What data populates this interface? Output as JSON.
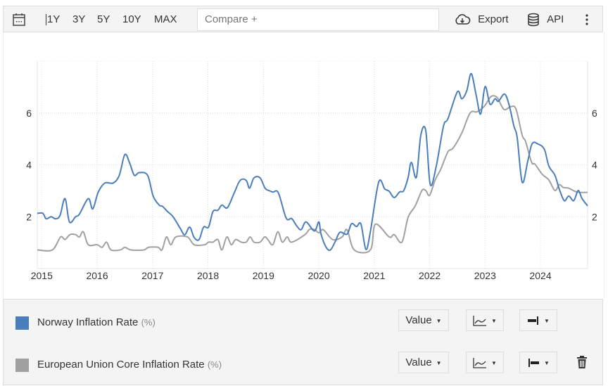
{
  "toolbar": {
    "ranges": [
      "1Y",
      "3Y",
      "5Y",
      "10Y",
      "MAX"
    ],
    "compare_placeholder": "Compare +",
    "export_label": "Export",
    "api_label": "API"
  },
  "legend": {
    "items": [
      {
        "name": "Norway Inflation Rate",
        "unit": "(%)",
        "color": "#4a7ebb",
        "value_label": "Value"
      },
      {
        "name": "European Union Core Inflation Rate",
        "unit": "(%)",
        "color": "#a0a0a0",
        "value_label": "Value"
      }
    ]
  },
  "chart_data": {
    "type": "line",
    "title": "",
    "xlabel": "",
    "ylabel": "",
    "xlim": [
      2014.92,
      2024.85
    ],
    "ylim": [
      0,
      8
    ],
    "x_ticks": [
      "2015",
      "2016",
      "2017",
      "2018",
      "2019",
      "2020",
      "2021",
      "2022",
      "2023",
      "2024"
    ],
    "y_ticks": [
      "2",
      "4",
      "6"
    ],
    "grid": true,
    "legend_placement": "bottom",
    "series": [
      {
        "name": "Norway Inflation Rate",
        "color": "#4a7ebb",
        "points": [
          [
            2014.92,
            2.13
          ],
          [
            2015.02,
            2.13
          ],
          [
            2015.08,
            1.92
          ],
          [
            2015.17,
            2.0
          ],
          [
            2015.25,
            1.92
          ],
          [
            2015.33,
            2.05
          ],
          [
            2015.42,
            2.7
          ],
          [
            2015.5,
            1.8
          ],
          [
            2015.61,
            2.0
          ],
          [
            2015.68,
            2.1
          ],
          [
            2015.84,
            2.7
          ],
          [
            2015.92,
            2.3
          ],
          [
            2016.02,
            2.95
          ],
          [
            2016.14,
            3.3
          ],
          [
            2016.29,
            3.3
          ],
          [
            2016.4,
            3.6
          ],
          [
            2016.5,
            4.4
          ],
          [
            2016.59,
            4.05
          ],
          [
            2016.67,
            3.6
          ],
          [
            2016.76,
            3.7
          ],
          [
            2016.91,
            3.6
          ],
          [
            2017.01,
            2.8
          ],
          [
            2017.12,
            2.45
          ],
          [
            2017.18,
            2.4
          ],
          [
            2017.27,
            2.2
          ],
          [
            2017.37,
            2.0
          ],
          [
            2017.5,
            1.55
          ],
          [
            2017.58,
            1.3
          ],
          [
            2017.67,
            1.6
          ],
          [
            2017.75,
            1.2
          ],
          [
            2017.84,
            1.12
          ],
          [
            2017.92,
            1.6
          ],
          [
            2018.01,
            1.6
          ],
          [
            2018.09,
            2.2
          ],
          [
            2018.18,
            2.25
          ],
          [
            2018.25,
            2.45
          ],
          [
            2018.35,
            2.35
          ],
          [
            2018.47,
            2.9
          ],
          [
            2018.58,
            3.4
          ],
          [
            2018.69,
            3.4
          ],
          [
            2018.75,
            3.1
          ],
          [
            2018.83,
            3.5
          ],
          [
            2018.94,
            3.5
          ],
          [
            2019.03,
            3.1
          ],
          [
            2019.11,
            3.0
          ],
          [
            2019.17,
            2.95
          ],
          [
            2019.27,
            2.92
          ],
          [
            2019.41,
            1.95
          ],
          [
            2019.51,
            1.93
          ],
          [
            2019.6,
            1.65
          ],
          [
            2019.68,
            1.5
          ],
          [
            2019.77,
            1.8
          ],
          [
            2019.92,
            1.45
          ],
          [
            2020.0,
            1.8
          ],
          [
            2020.04,
            1.33
          ],
          [
            2020.13,
            0.83
          ],
          [
            2020.21,
            0.72
          ],
          [
            2020.3,
            1.06
          ],
          [
            2020.38,
            1.4
          ],
          [
            2020.51,
            1.33
          ],
          [
            2020.59,
            1.73
          ],
          [
            2020.68,
            1.62
          ],
          [
            2020.76,
            1.72
          ],
          [
            2020.85,
            0.74
          ],
          [
            2020.93,
            1.42
          ],
          [
            2021.08,
            3.33
          ],
          [
            2021.19,
            3.07
          ],
          [
            2021.27,
            2.98
          ],
          [
            2021.36,
            2.74
          ],
          [
            2021.46,
            2.96
          ],
          [
            2021.53,
            3.0
          ],
          [
            2021.61,
            3.5
          ],
          [
            2021.67,
            4.1
          ],
          [
            2021.76,
            3.52
          ],
          [
            2021.84,
            5.14
          ],
          [
            2021.93,
            5.32
          ],
          [
            2022.01,
            3.25
          ],
          [
            2022.12,
            3.96
          ],
          [
            2022.25,
            5.5
          ],
          [
            2022.33,
            5.78
          ],
          [
            2022.5,
            6.82
          ],
          [
            2022.58,
            6.55
          ],
          [
            2022.67,
            6.86
          ],
          [
            2022.75,
            7.52
          ],
          [
            2022.84,
            6.68
          ],
          [
            2022.92,
            5.96
          ],
          [
            2023.0,
            7.02
          ],
          [
            2023.09,
            6.34
          ],
          [
            2023.18,
            6.55
          ],
          [
            2023.24,
            6.45
          ],
          [
            2023.35,
            6.73
          ],
          [
            2023.43,
            6.34
          ],
          [
            2023.52,
            5.5
          ],
          [
            2023.58,
            5.05
          ],
          [
            2023.67,
            3.33
          ],
          [
            2023.77,
            4.14
          ],
          [
            2023.85,
            4.82
          ],
          [
            2023.96,
            4.8
          ],
          [
            2024.07,
            4.6
          ],
          [
            2024.15,
            3.96
          ],
          [
            2024.26,
            3.6
          ],
          [
            2024.34,
            3.06
          ],
          [
            2024.43,
            2.62
          ],
          [
            2024.51,
            2.8
          ],
          [
            2024.6,
            2.62
          ],
          [
            2024.68,
            3.01
          ],
          [
            2024.75,
            2.7
          ],
          [
            2024.85,
            2.42
          ]
        ]
      },
      {
        "name": "European Union Core Inflation Rate",
        "color": "#a0a0a0",
        "points": [
          [
            2014.92,
            0.72
          ],
          [
            2015.19,
            0.72
          ],
          [
            2015.34,
            1.22
          ],
          [
            2015.42,
            1.12
          ],
          [
            2015.51,
            1.31
          ],
          [
            2015.61,
            1.31
          ],
          [
            2015.68,
            1.22
          ],
          [
            2015.75,
            1.42
          ],
          [
            2015.84,
            0.92
          ],
          [
            2016.0,
            0.92
          ],
          [
            2016.09,
            0.82
          ],
          [
            2016.17,
            1.02
          ],
          [
            2016.25,
            0.72
          ],
          [
            2016.42,
            0.72
          ],
          [
            2016.5,
            0.82
          ],
          [
            2016.61,
            0.72
          ],
          [
            2016.84,
            0.72
          ],
          [
            2016.93,
            0.82
          ],
          [
            2017.1,
            0.82
          ],
          [
            2017.17,
            0.72
          ],
          [
            2017.25,
            1.22
          ],
          [
            2017.33,
            0.92
          ],
          [
            2017.42,
            1.22
          ],
          [
            2017.63,
            1.22
          ],
          [
            2017.75,
            0.92
          ],
          [
            2017.94,
            0.92
          ],
          [
            2018.01,
            1.02
          ],
          [
            2018.09,
            1.02
          ],
          [
            2018.18,
            1.12
          ],
          [
            2018.25,
            0.72
          ],
          [
            2018.34,
            1.22
          ],
          [
            2018.42,
            0.92
          ],
          [
            2018.5,
            1.12
          ],
          [
            2018.6,
            1.02
          ],
          [
            2018.69,
            1.02
          ],
          [
            2018.76,
            1.22
          ],
          [
            2018.83,
            1.02
          ],
          [
            2018.94,
            1.02
          ],
          [
            2019.02,
            1.22
          ],
          [
            2019.08,
            1.12
          ],
          [
            2019.17,
            0.92
          ],
          [
            2019.26,
            1.42
          ],
          [
            2019.34,
            1.02
          ],
          [
            2019.43,
            1.22
          ],
          [
            2019.51,
            1.02
          ],
          [
            2019.75,
            1.31
          ],
          [
            2019.83,
            1.51
          ],
          [
            2019.92,
            1.51
          ],
          [
            2020.0,
            1.38
          ],
          [
            2020.08,
            1.5
          ],
          [
            2020.25,
            1.12
          ],
          [
            2020.42,
            1.22
          ],
          [
            2020.51,
            1.5
          ],
          [
            2020.64,
            0.72
          ],
          [
            2020.93,
            0.72
          ],
          [
            2021.02,
            1.71
          ],
          [
            2021.27,
            1.22
          ],
          [
            2021.36,
            1.31
          ],
          [
            2021.5,
            1.02
          ],
          [
            2021.61,
            1.97
          ],
          [
            2021.74,
            2.42
          ],
          [
            2021.86,
            3.01
          ],
          [
            2021.93,
            3.01
          ],
          [
            2022.0,
            2.83
          ],
          [
            2022.1,
            3.42
          ],
          [
            2022.2,
            3.83
          ],
          [
            2022.33,
            4.51
          ],
          [
            2022.42,
            4.64
          ],
          [
            2022.58,
            5.23
          ],
          [
            2022.73,
            6.0
          ],
          [
            2022.86,
            6.05
          ],
          [
            2022.99,
            6.27
          ],
          [
            2023.11,
            6.64
          ],
          [
            2023.22,
            6.59
          ],
          [
            2023.34,
            6.14
          ],
          [
            2023.47,
            6.25
          ],
          [
            2023.56,
            6.14
          ],
          [
            2023.67,
            5.14
          ],
          [
            2023.73,
            4.91
          ],
          [
            2023.84,
            4.1
          ],
          [
            2023.9,
            4.03
          ],
          [
            2024.03,
            3.64
          ],
          [
            2024.15,
            3.42
          ],
          [
            2024.26,
            3.01
          ],
          [
            2024.34,
            3.24
          ],
          [
            2024.41,
            3.13
          ],
          [
            2024.51,
            3.1
          ],
          [
            2024.66,
            2.95
          ],
          [
            2024.85,
            2.94
          ]
        ]
      }
    ]
  }
}
